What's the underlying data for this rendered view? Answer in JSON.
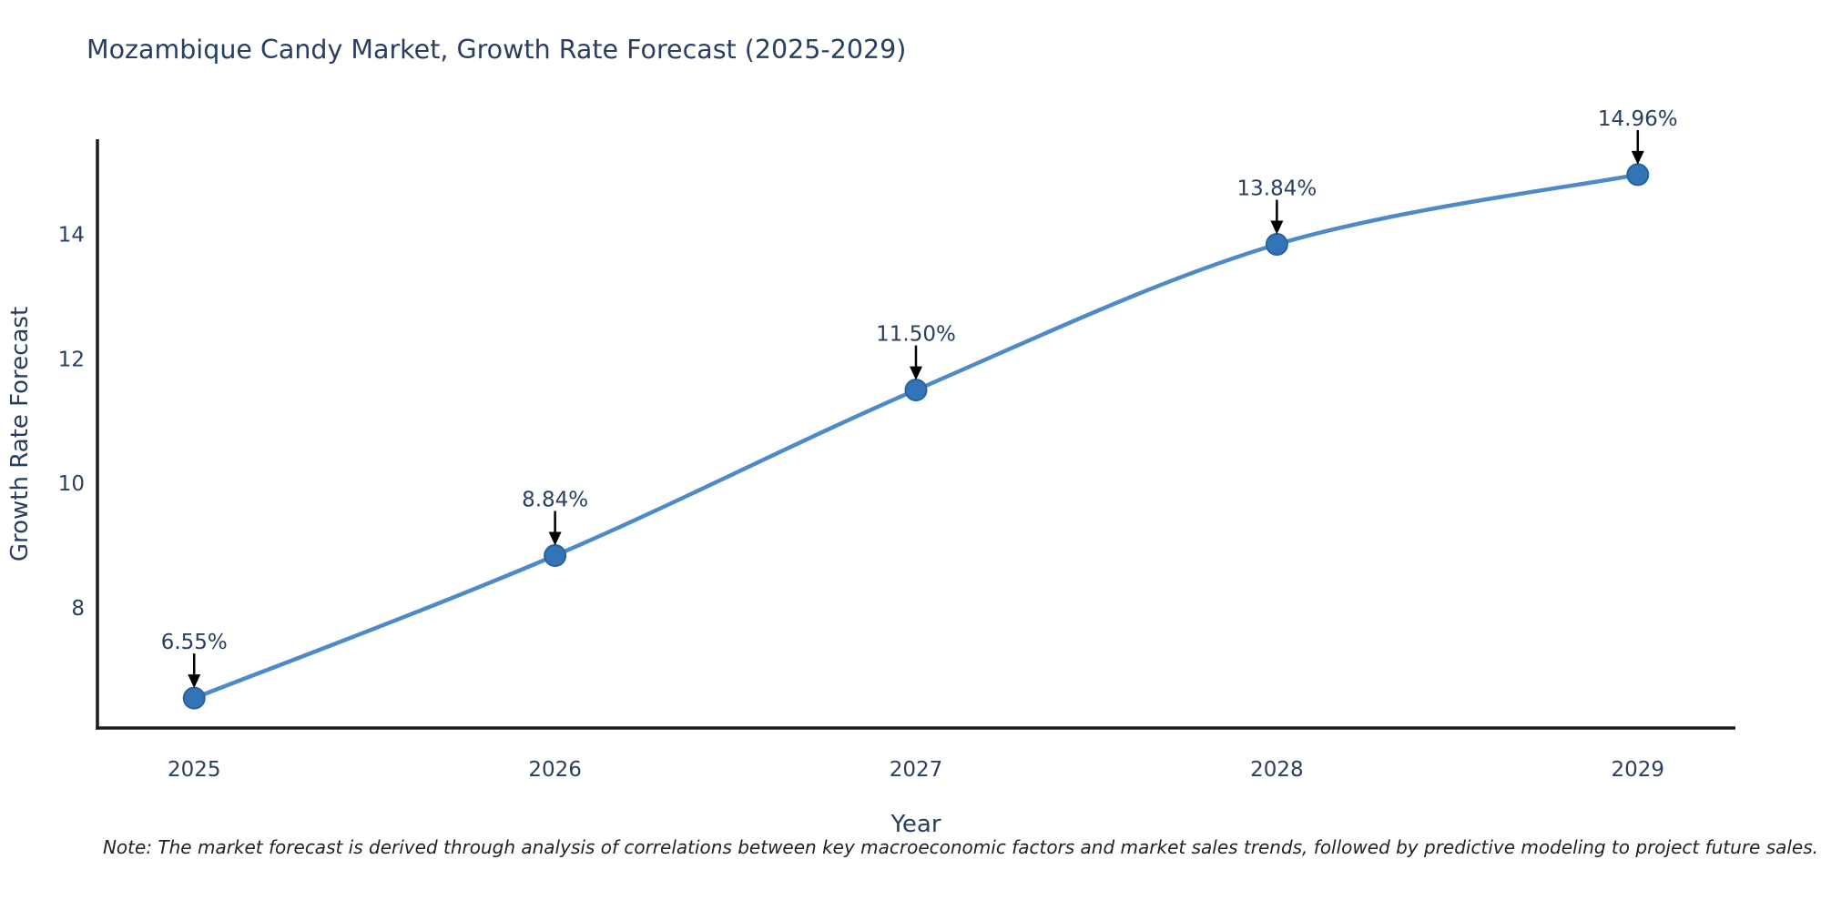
{
  "note": "Note: The market forecast is derived through analysis of correlations between key macroeconomic factors and market sales trends, followed by predictive modeling to project future sales.",
  "colors": {
    "line": "#4e8ac8",
    "marker_fill": "#3274b5",
    "marker_border": "#27639f",
    "text": "#2a3f5f",
    "axis_line": "#1c1c1c",
    "arrow": "#000000",
    "note_text": "#222222"
  },
  "chart_data": {
    "type": "line",
    "title": "Mozambique Candy Market, Growth Rate Forecast (2025-2029)",
    "xlabel": "Year",
    "ylabel": "Growth Rate Forecast",
    "x": [
      2025,
      2026,
      2027,
      2028,
      2029
    ],
    "values": [
      6.55,
      8.84,
      11.5,
      13.84,
      14.96
    ],
    "point_labels": [
      "6.55%",
      "8.84%",
      "11.50%",
      "13.84%",
      "14.96%"
    ],
    "yticks": [
      8,
      10,
      12,
      14
    ],
    "ytick_labels": [
      "8",
      "10",
      "12",
      "14"
    ],
    "xtick_labels": [
      "2025",
      "2026",
      "2027",
      "2028",
      "2029"
    ],
    "ylim": [
      6.07,
      15.5
    ],
    "xlim": [
      2024.732,
      2029.268
    ],
    "grid": false,
    "legend": "none",
    "line_shape": "spline",
    "marker": "circle",
    "annotation_style": "value-label-with-down-arrow"
  }
}
